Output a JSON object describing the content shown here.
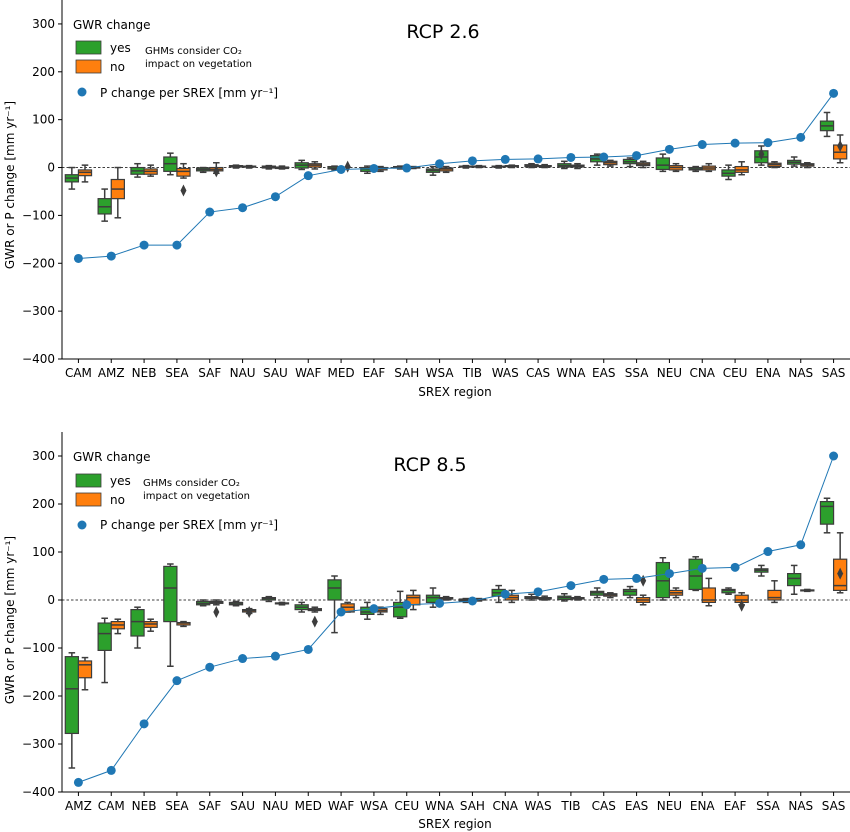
{
  "chart_data": [
    {
      "type": "box",
      "title": "RCP 2.6",
      "xlabel": "SREX region",
      "ylabel": "GWR or P change [mm yr⁻¹]",
      "ylim": [
        -400,
        350
      ],
      "yticks": [
        -400,
        -300,
        -200,
        -100,
        0,
        100,
        200,
        300
      ],
      "ytick_labels": [
        "−400",
        "−300",
        "−200",
        "−100",
        "0",
        "100",
        "200",
        "300"
      ],
      "legend": {
        "placement": "top-left",
        "title": "GWR change",
        "yes_label": "yes",
        "no_label": "no",
        "note_line1": "GHMs consider CO₂",
        "note_line2": "impact on vegetation",
        "p_label": "P change per SREX [mm yr⁻¹]"
      },
      "colors": {
        "yes": "#2ca02c",
        "no": "#ff7f0e",
        "p": "#1f77b4",
        "edge": "#3d3d3d"
      },
      "categories": [
        "CAM",
        "AMZ",
        "NEB",
        "SEA",
        "SAF",
        "NAU",
        "SAU",
        "WAF",
        "MED",
        "EAF",
        "SAH",
        "WSA",
        "TIB",
        "WAS",
        "CAS",
        "WNA",
        "EAS",
        "SSA",
        "NEU",
        "CNA",
        "CEU",
        "ENA",
        "NAS",
        "SAS"
      ],
      "p_change": [
        -190,
        -185,
        -162,
        -162,
        -93,
        -84,
        -61,
        -17,
        -4,
        -2,
        -1,
        8,
        14,
        17,
        18,
        21,
        22,
        25,
        38,
        48,
        51,
        52,
        63,
        155
      ],
      "yes_boxes": [
        [
          -45,
          -30,
          -22,
          -15,
          0
        ],
        [
          -112,
          -97,
          -82,
          -65,
          -45
        ],
        [
          -20,
          -14,
          -7,
          0,
          8
        ],
        [
          -15,
          -8,
          8,
          22,
          30
        ],
        [
          -10,
          -7,
          -4,
          -1,
          0
        ],
        [
          -1,
          1,
          3,
          4,
          5
        ],
        [
          -3,
          -1,
          1,
          3,
          4
        ],
        [
          -4,
          -1,
          5,
          10,
          15
        ],
        [
          -5,
          -3,
          -1,
          2,
          3
        ],
        [
          -12,
          -8,
          -3,
          0,
          3
        ],
        [
          -3,
          -1,
          1,
          2,
          3
        ],
        [
          -16,
          -10,
          -6,
          -3,
          2
        ],
        [
          -1,
          1,
          2,
          3,
          4
        ],
        [
          -1,
          1,
          2,
          3,
          4
        ],
        [
          0,
          2,
          4,
          6,
          8
        ],
        [
          -2,
          1,
          4,
          8,
          13
        ],
        [
          5,
          12,
          18,
          25,
          28
        ],
        [
          2,
          8,
          12,
          17,
          20
        ],
        [
          -8,
          -4,
          5,
          20,
          28
        ],
        [
          -8,
          -5,
          -3,
          0,
          2
        ],
        [
          -25,
          -18,
          -12,
          -5,
          5
        ],
        [
          5,
          10,
          22,
          35,
          45
        ],
        [
          3,
          7,
          11,
          15,
          22
        ],
        [
          65,
          77,
          87,
          97,
          115
        ]
      ],
      "no_boxes": [
        [
          -30,
          -17,
          -10,
          -5,
          5
        ],
        [
          -105,
          -65,
          -45,
          -25,
          0
        ],
        [
          -18,
          -14,
          -8,
          -3,
          5
        ],
        [
          -22,
          -18,
          -8,
          -2,
          8
        ],
        [
          -12,
          -7,
          -4,
          0,
          10
        ],
        [
          -1,
          1,
          2,
          3,
          4
        ],
        [
          -3,
          -2,
          -1,
          1,
          3
        ],
        [
          -3,
          1,
          5,
          8,
          12
        ],
        null,
        [
          -8,
          -5,
          -2,
          0,
          2
        ],
        [
          -2,
          -1,
          0,
          1,
          2
        ],
        [
          -10,
          -7,
          -3,
          -1,
          2
        ],
        [
          0,
          1,
          2,
          3,
          4
        ],
        [
          0,
          2,
          3,
          4,
          5
        ],
        [
          0,
          2,
          3,
          4,
          6
        ],
        [
          -2,
          1,
          3,
          5,
          8
        ],
        [
          3,
          6,
          10,
          13,
          15
        ],
        [
          0,
          4,
          7,
          10,
          13
        ],
        [
          -8,
          -5,
          0,
          4,
          8
        ],
        [
          -8,
          -5,
          -1,
          3,
          8
        ],
        [
          -15,
          -10,
          -5,
          2,
          12
        ],
        [
          0,
          2,
          6,
          9,
          12
        ],
        [
          0,
          3,
          6,
          8,
          10
        ],
        [
          10,
          18,
          32,
          47,
          68
        ]
      ],
      "outliers": [
        [
          3,
          0,
          -48
        ],
        [
          4,
          0,
          -8
        ],
        [
          8,
          0,
          2
        ],
        [
          21,
          1,
          28
        ],
        [
          23,
          0,
          45
        ]
      ]
    },
    {
      "type": "box",
      "title": "RCP 8.5",
      "xlabel": "SREX region",
      "ylabel": "GWR or P change [mm yr⁻¹]",
      "ylim": [
        -400,
        350
      ],
      "yticks": [
        -400,
        -300,
        -200,
        -100,
        0,
        100,
        200,
        300
      ],
      "ytick_labels": [
        "−400",
        "−300",
        "−200",
        "−100",
        "0",
        "100",
        "200",
        "300"
      ],
      "legend": {
        "placement": "top-left",
        "title": "GWR change",
        "yes_label": "yes",
        "no_label": "no",
        "note_line1": "GHMs consider CO₂",
        "note_line2": "impact on vegetation",
        "p_label": "P change per SREX [mm yr⁻¹]"
      },
      "colors": {
        "yes": "#2ca02c",
        "no": "#ff7f0e",
        "p": "#1f77b4",
        "edge": "#3d3d3d"
      },
      "categories": [
        "AMZ",
        "CAM",
        "NEB",
        "SEA",
        "SAF",
        "SAU",
        "NAU",
        "MED",
        "WAF",
        "WSA",
        "CEU",
        "WNA",
        "SAH",
        "CNA",
        "WAS",
        "TIB",
        "CAS",
        "EAS",
        "NEU",
        "ENA",
        "EAF",
        "SSA",
        "NAS",
        "SAS"
      ],
      "p_change": [
        -380,
        -355,
        -258,
        -168,
        -140,
        -122,
        -117,
        -103,
        -25,
        -18,
        -10,
        -7,
        -2,
        12,
        17,
        30,
        43,
        45,
        55,
        66,
        68,
        101,
        115,
        300
      ],
      "yes_boxes": [
        [
          -350,
          -278,
          -185,
          -118,
          -110
        ],
        [
          -172,
          -105,
          -70,
          -48,
          -38
        ],
        [
          -100,
          -75,
          -45,
          -20,
          -15
        ],
        [
          -138,
          -45,
          25,
          70,
          75
        ],
        [
          -12,
          -10,
          -7,
          -3,
          0
        ],
        [
          -12,
          -10,
          -8,
          -5,
          -3
        ],
        [
          -3,
          0,
          3,
          5,
          7
        ],
        [
          -25,
          -20,
          -15,
          -10,
          -5
        ],
        [
          -68,
          0,
          25,
          42,
          50
        ],
        [
          -40,
          -30,
          -25,
          -15,
          -5
        ],
        [
          -38,
          -35,
          -15,
          -5,
          18
        ],
        [
          -15,
          -5,
          5,
          10,
          25
        ],
        [
          -5,
          -2,
          0,
          2,
          3
        ],
        [
          -5,
          8,
          15,
          22,
          30
        ],
        [
          0,
          3,
          5,
          7,
          12
        ],
        [
          -2,
          1,
          5,
          8,
          13
        ],
        [
          5,
          10,
          15,
          18,
          25
        ],
        [
          5,
          10,
          18,
          22,
          28
        ],
        [
          0,
          5,
          40,
          78,
          88
        ],
        [
          20,
          22,
          50,
          85,
          90
        ],
        [
          12,
          15,
          20,
          22,
          25
        ],
        [
          50,
          58,
          62,
          65,
          72
        ],
        [
          12,
          30,
          45,
          55,
          72
        ],
        [
          140,
          158,
          195,
          205,
          212
        ]
      ],
      "no_boxes": [
        [
          -187,
          -162,
          -135,
          -127,
          -120
        ],
        [
          -70,
          -60,
          -52,
          -45,
          -40
        ],
        [
          -65,
          -57,
          -50,
          -45,
          -40
        ],
        [
          -55,
          -52,
          -48,
          -47,
          -45
        ],
        [
          -10,
          -7,
          -5,
          -3,
          0
        ],
        [
          -28,
          -25,
          -22,
          -20,
          -18
        ],
        [
          -10,
          -8,
          -7,
          -6,
          -5
        ],
        [
          -25,
          -22,
          -20,
          -18,
          -15
        ],
        [
          -25,
          -25,
          -15,
          -8,
          -5
        ],
        [
          -30,
          -25,
          -22,
          -18,
          -15
        ],
        [
          -20,
          -10,
          5,
          10,
          20
        ],
        [
          0,
          2,
          3,
          5,
          7
        ],
        [
          -2,
          0,
          1,
          2,
          3
        ],
        [
          -5,
          0,
          5,
          10,
          20
        ],
        [
          0,
          2,
          4,
          5,
          8
        ],
        [
          0,
          2,
          4,
          5,
          7
        ],
        [
          5,
          8,
          11,
          13,
          15
        ],
        [
          -10,
          -5,
          0,
          5,
          10
        ],
        [
          5,
          10,
          15,
          20,
          25
        ],
        [
          -12,
          -5,
          0,
          25,
          45
        ],
        [
          -10,
          -5,
          0,
          10,
          15
        ],
        [
          -5,
          0,
          5,
          20,
          40
        ],
        [
          18,
          19,
          20,
          21,
          22
        ],
        [
          15,
          20,
          30,
          85,
          140
        ]
      ],
      "outliers": [
        [
          4,
          0,
          -25
        ],
        [
          5,
          0,
          -25
        ],
        [
          7,
          0,
          -45
        ],
        [
          17,
          0,
          40
        ],
        [
          20,
          0,
          -12
        ],
        [
          23,
          0,
          55
        ]
      ]
    }
  ]
}
